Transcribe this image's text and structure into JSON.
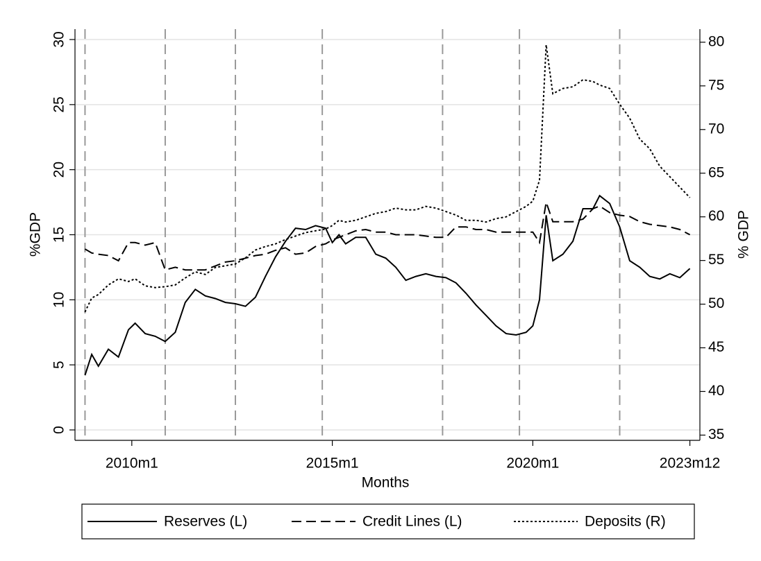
{
  "chart_data": {
    "type": "line",
    "x_label": "Months",
    "y_label": "%GDP",
    "y2_label": "% GDP",
    "x": [
      "2008m11",
      "2009m1",
      "2009m3",
      "2009m6",
      "2009m9",
      "2009m12",
      "2010m2",
      "2010m5",
      "2010m8",
      "2010m11",
      "2011m2",
      "2011m5",
      "2011m8",
      "2011m11",
      "2012m2",
      "2012m5",
      "2012m8",
      "2012m11",
      "2013m2",
      "2013m5",
      "2013m8",
      "2013m11",
      "2014m2",
      "2014m5",
      "2014m8",
      "2014m11",
      "2015m1",
      "2015m3",
      "2015m5",
      "2015m8",
      "2015m11",
      "2016m2",
      "2016m5",
      "2016m8",
      "2016m11",
      "2017m2",
      "2017m5",
      "2017m8",
      "2017m11",
      "2018m2",
      "2018m5",
      "2018m8",
      "2018m11",
      "2019m2",
      "2019m5",
      "2019m8",
      "2019m11",
      "2020m1",
      "2020m3",
      "2020m5",
      "2020m7",
      "2020m10",
      "2021m1",
      "2021m4",
      "2021m7",
      "2021m9",
      "2021m12",
      "2022m3",
      "2022m6",
      "2022m9",
      "2022m12",
      "2023m3",
      "2023m6",
      "2023m9",
      "2023m12"
    ],
    "series": [
      {
        "name": "Reserves (L)",
        "color": "#000000",
        "line_style": "solid",
        "axis": "y",
        "values": [
          4.2,
          5.8,
          4.9,
          6.2,
          5.6,
          7.7,
          8.2,
          7.4,
          7.2,
          6.8,
          7.5,
          9.8,
          10.8,
          10.3,
          10.1,
          9.8,
          9.7,
          9.5,
          10.2,
          11.8,
          13.3,
          14.5,
          15.5,
          15.4,
          15.7,
          15.5,
          14.4,
          15.0,
          14.3,
          14.8,
          14.8,
          13.5,
          13.2,
          12.5,
          11.5,
          11.8,
          12.0,
          11.8,
          11.7,
          11.3,
          10.5,
          9.6,
          8.8,
          8.0,
          7.4,
          7.3,
          7.5,
          8.0,
          10.0,
          16.5,
          13.0,
          13.5,
          14.5,
          17.0,
          17.0,
          18.0,
          17.4,
          15.6,
          13.0,
          12.5,
          11.8,
          11.6,
          12.0,
          11.7,
          12.4
        ]
      },
      {
        "name": "Credit Lines (L)",
        "color": "#000000",
        "line_style": "dashed",
        "axis": "y",
        "values": [
          13.9,
          13.6,
          13.5,
          13.4,
          13.0,
          14.4,
          14.4,
          14.2,
          14.4,
          12.3,
          12.5,
          12.3,
          12.3,
          12.3,
          12.6,
          12.9,
          13.0,
          13.2,
          13.4,
          13.5,
          13.8,
          14.0,
          13.5,
          13.6,
          14.1,
          14.3,
          14.6,
          14.8,
          15.0,
          15.3,
          15.4,
          15.2,
          15.2,
          15.0,
          15.0,
          15.0,
          14.9,
          14.8,
          14.8,
          15.6,
          15.6,
          15.4,
          15.4,
          15.2,
          15.2,
          15.2,
          15.2,
          15.2,
          14.4,
          17.5,
          16.0,
          16.0,
          16.0,
          16.2,
          17.0,
          17.2,
          16.7,
          16.5,
          16.4,
          16.0,
          15.8,
          15.7,
          15.6,
          15.4,
          15.0
        ]
      },
      {
        "name": "Deposits (R)",
        "color": "#000000",
        "line_style": "dotted",
        "axis": "y2",
        "values": [
          49.1,
          50.7,
          51.1,
          52.2,
          52.9,
          52.6,
          52.9,
          52.1,
          51.9,
          52.0,
          52.2,
          53.0,
          53.7,
          53.4,
          54.2,
          54.4,
          54.6,
          55.3,
          56.2,
          56.6,
          56.9,
          57.4,
          57.8,
          58.2,
          58.4,
          58.6,
          59.0,
          59.6,
          59.4,
          59.6,
          60.0,
          60.4,
          60.6,
          61.0,
          60.8,
          60.8,
          61.2,
          61.0,
          60.6,
          60.2,
          59.6,
          59.6,
          59.4,
          59.8,
          60.0,
          60.6,
          61.2,
          61.8,
          64.2,
          79.7,
          74.1,
          74.7,
          74.9,
          75.7,
          75.5,
          75.1,
          74.7,
          72.9,
          71.3,
          68.9,
          67.8,
          65.8,
          64.6,
          63.4,
          62.2
        ]
      }
    ],
    "xlim": [
      "2008m8",
      "2024m3"
    ],
    "xticks": [
      "2010m1",
      "2015m1",
      "2020m1",
      "2023m12"
    ],
    "ylim": [
      -0.8,
      30.8
    ],
    "yticks": [
      0,
      5,
      10,
      15,
      20,
      25,
      30
    ],
    "y2lim": [
      34.4,
      81.5
    ],
    "y2ticks": [
      35,
      40,
      45,
      50,
      55,
      60,
      65,
      70,
      75,
      80
    ],
    "vlines": [
      "2008m11",
      "2010m11",
      "2012m8",
      "2014m10",
      "2017m10",
      "2019m9",
      "2022m3"
    ],
    "grid": true,
    "legend_position": "bottom"
  }
}
